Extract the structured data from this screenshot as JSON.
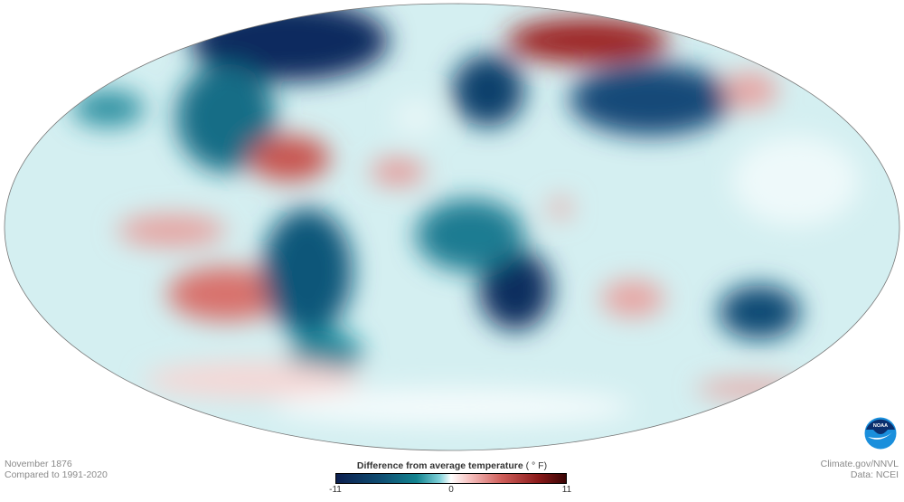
{
  "map": {
    "projection": "Hammer/Mollweide world",
    "variable": "temperature anomaly",
    "colors": {
      "cold_extreme": "#0c1f4f",
      "cold": "#12838f",
      "neutral": "#ffffff",
      "warm": "#cf5e5a",
      "warm_extreme": "#3a0505"
    }
  },
  "caption": {
    "date": "November 1876",
    "baseline": "Compared to 1991-2020"
  },
  "credits": {
    "source": "Climate.gov/NNVL",
    "data": "Data: NCEI",
    "logo_text": "NOAA",
    "logo_icon": "noaa-logo-icon"
  },
  "legend": {
    "title": "Difference from average temperature",
    "unit": "( ° F)",
    "min": "-11",
    "mid": "0",
    "max": "11",
    "range": [
      -11,
      11
    ]
  }
}
